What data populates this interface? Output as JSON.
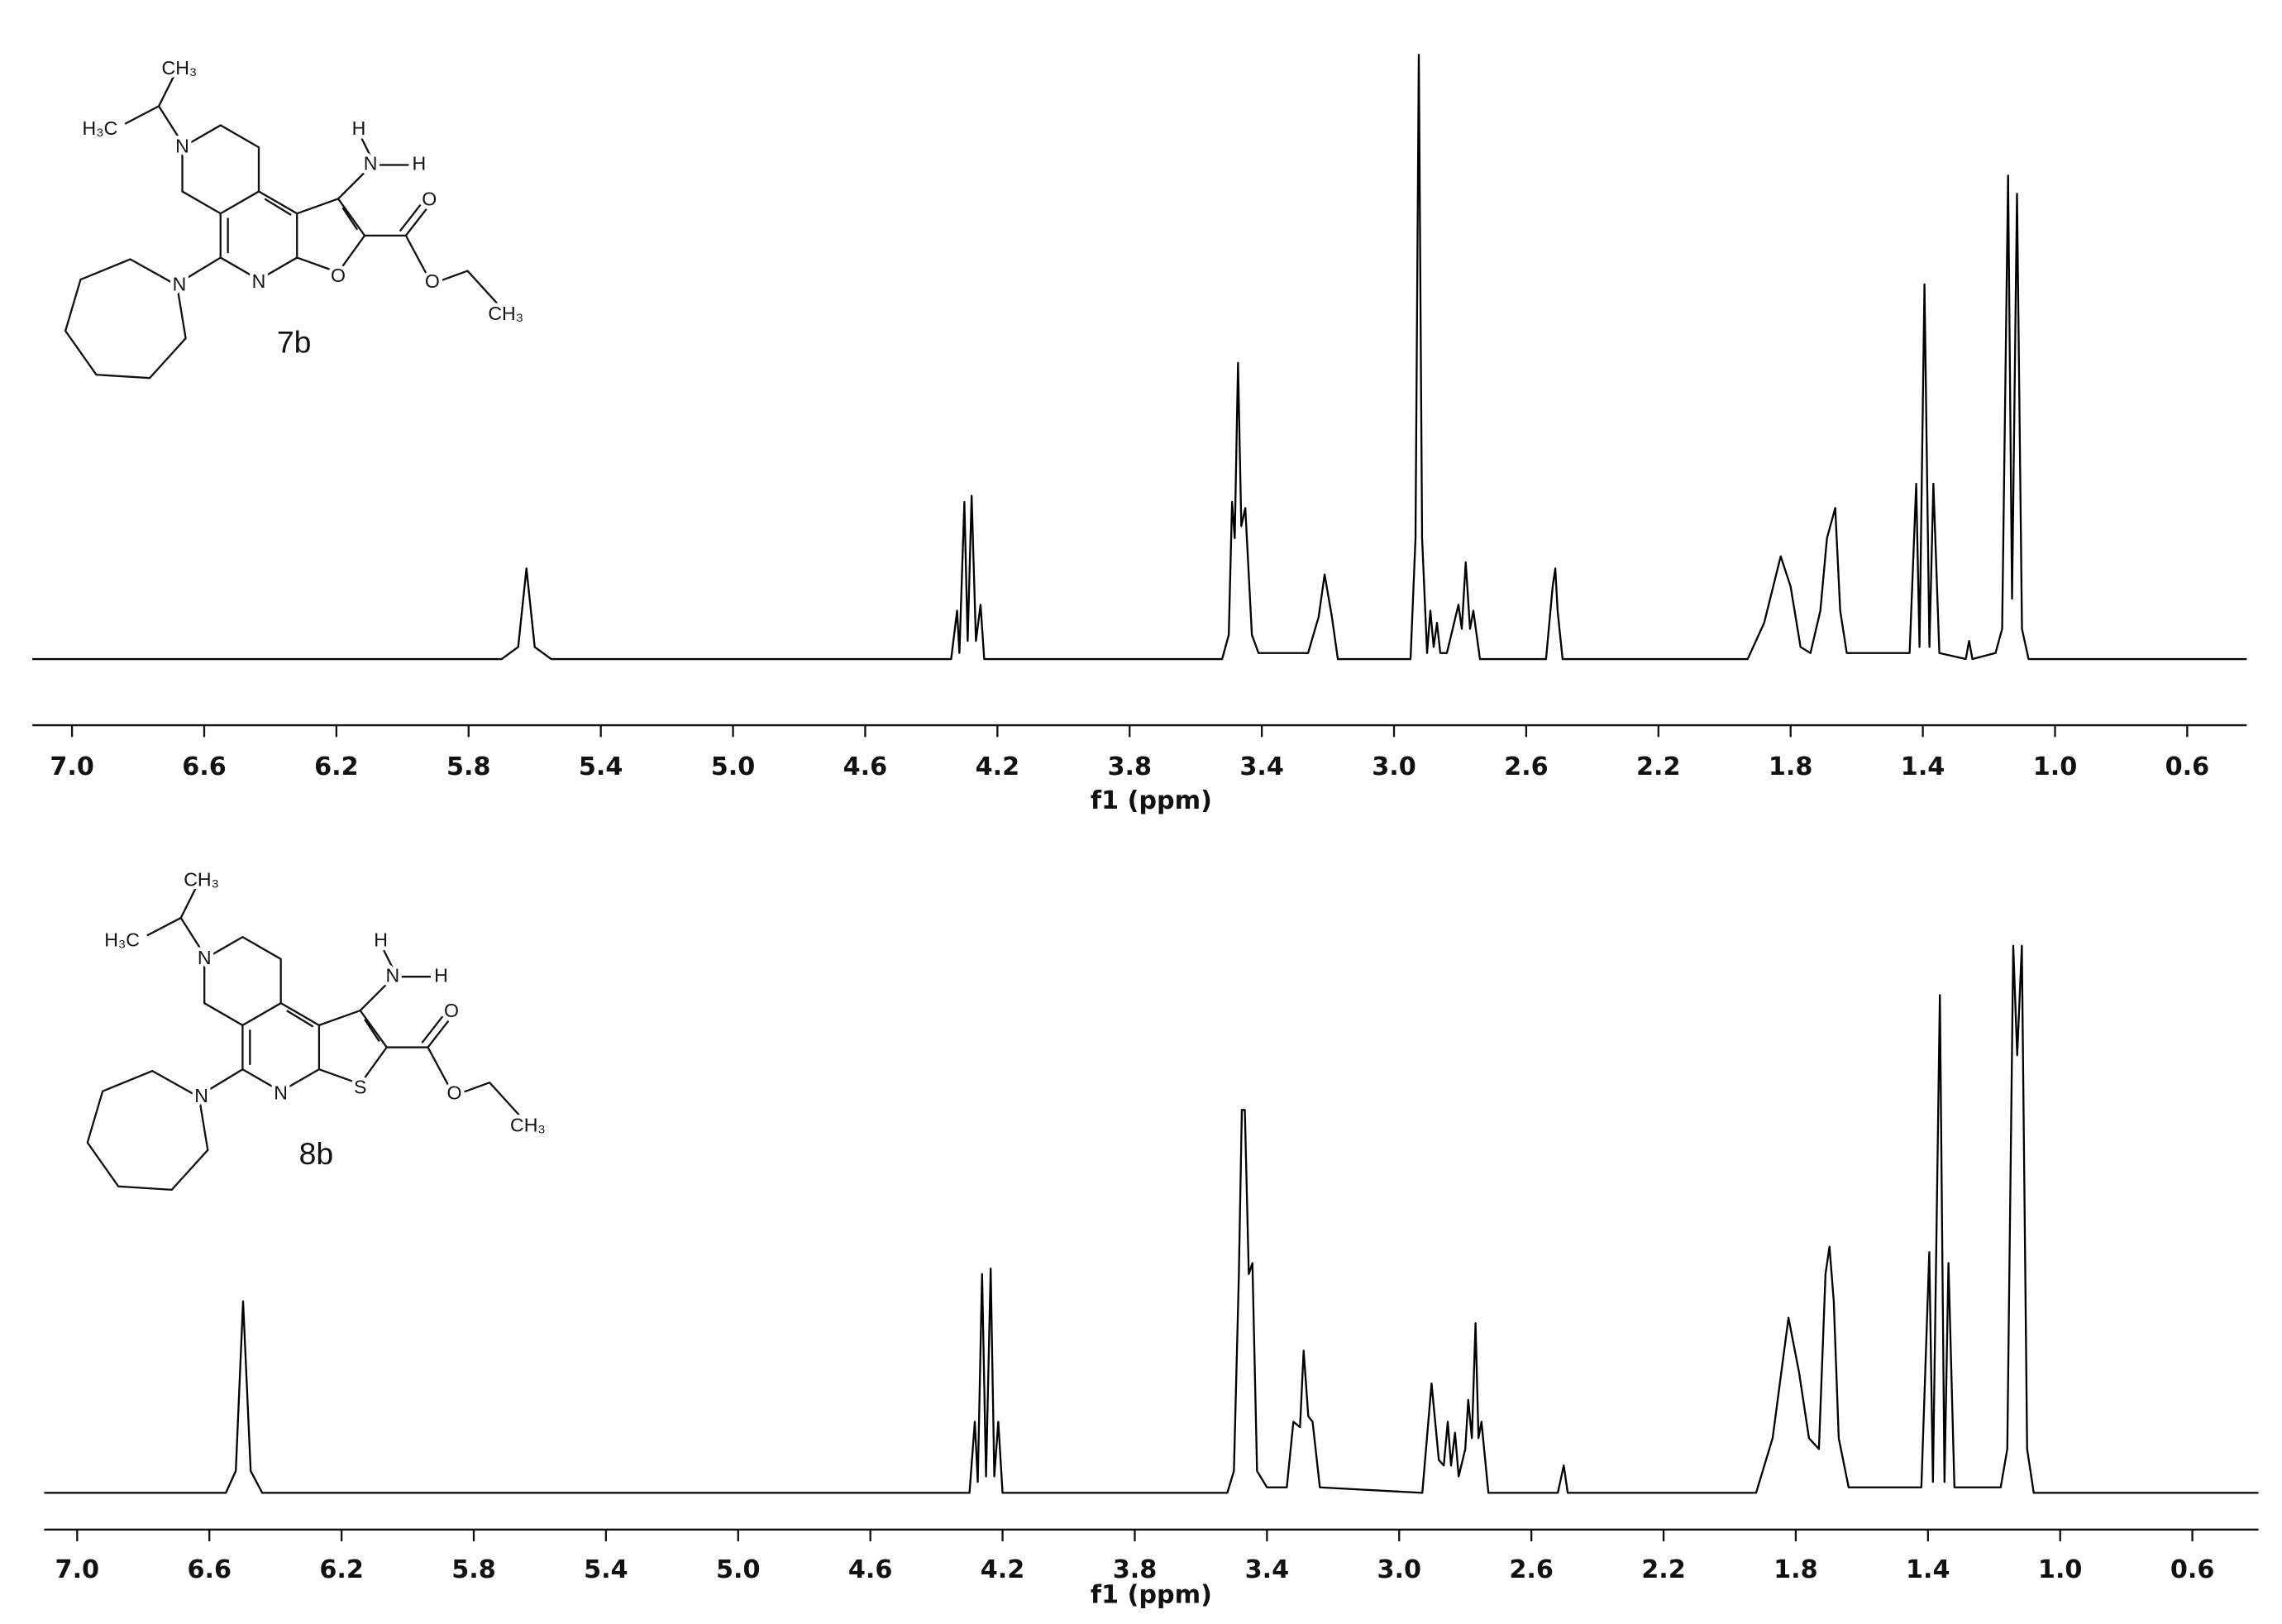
{
  "chart_data": [
    {
      "type": "line",
      "color": "#000000",
      "xlabel": "f1 (ppm)",
      "xlim": [
        7.12,
        0.42
      ],
      "ylim": [
        0,
        100
      ],
      "xticks": [
        {
          "value": 7.0,
          "label": "7.0"
        },
        6.6,
        6.2,
        5.8,
        5.4,
        {
          "value": 5.0,
          "label": "5.0"
        },
        4.6,
        4.2,
        3.8,
        3.4,
        {
          "value": 3.0,
          "label": "3.0"
        },
        2.6,
        2.2,
        1.8,
        1.4,
        {
          "value": 1.0,
          "label": "1.0"
        },
        0.6
      ],
      "structure": {
        "label": "7b",
        "atoms": [
          "CH₃",
          "H₃C",
          "N",
          "H",
          "N",
          "H",
          "O",
          "O",
          "N",
          "N",
          "O",
          "CH₃"
        ]
      },
      "x": [
        7.12,
        5.7,
        5.65,
        5.625,
        5.6,
        5.55,
        4.34,
        4.322,
        4.315,
        4.3,
        4.29,
        4.278,
        4.265,
        4.251,
        4.24,
        3.52,
        3.5,
        3.49,
        3.482,
        3.472,
        3.462,
        3.45,
        3.43,
        3.41,
        3.26,
        3.228,
        3.21,
        3.188,
        3.17,
        2.95,
        2.935,
        2.925,
        2.915,
        2.9,
        2.89,
        2.88,
        2.87,
        2.86,
        2.84,
        2.805,
        2.795,
        2.783,
        2.77,
        2.76,
        2.74,
        2.54,
        2.52,
        2.512,
        2.505,
        2.49,
        1.93,
        1.88,
        1.83,
        1.8,
        1.77,
        1.74,
        1.71,
        1.69,
        1.68,
        1.665,
        1.65,
        1.63,
        1.44,
        1.42,
        1.41,
        1.395,
        1.38,
        1.368,
        1.35,
        1.27,
        1.26,
        1.25,
        1.18,
        1.16,
        1.142,
        1.13,
        1.115,
        1.1,
        1.08,
        0.42
      ],
      "values": [
        0,
        0,
        2,
        15,
        2,
        0,
        0,
        8,
        1,
        26,
        3,
        27,
        3,
        9,
        0,
        0,
        4,
        26,
        20,
        49,
        22,
        25,
        4,
        1,
        1,
        7,
        14,
        7,
        0,
        0,
        20,
        100,
        20,
        1,
        8,
        2,
        6,
        1,
        1,
        9,
        5,
        16,
        5,
        8,
        0,
        0,
        12,
        15,
        8,
        0,
        0,
        6,
        17,
        12,
        2,
        1,
        8,
        20,
        22,
        25,
        8,
        1,
        1,
        29,
        2,
        62,
        2,
        29,
        1,
        0,
        3,
        0,
        1,
        5,
        80,
        10,
        77,
        5,
        0,
        0
      ]
    },
    {
      "type": "line",
      "color": "#000000",
      "xlabel": "f1 (ppm)",
      "xlim": [
        7.1,
        0.4
      ],
      "ylim": [
        0,
        100
      ],
      "xticks": [
        {
          "value": 7.0,
          "label": "7.0"
        },
        6.6,
        6.2,
        5.8,
        5.4,
        {
          "value": 5.0,
          "label": "5.0"
        },
        4.6,
        4.2,
        3.8,
        3.4,
        {
          "value": 3.0,
          "label": "3.0"
        },
        2.6,
        2.2,
        1.8,
        1.4,
        {
          "value": 1.0,
          "label": "1.0"
        },
        0.6
      ],
      "structure": {
        "label": "8b",
        "atoms": [
          "CH₃",
          "H₃C",
          "N",
          "H",
          "N",
          "H",
          "O",
          "S",
          "N",
          "N",
          "O",
          "CH₃"
        ]
      },
      "x": [
        7.1,
        6.55,
        6.52,
        6.498,
        6.475,
        6.44,
        4.3,
        4.284,
        4.275,
        4.262,
        4.25,
        4.236,
        4.225,
        4.213,
        4.2,
        3.52,
        3.5,
        3.485,
        3.476,
        3.467,
        3.455,
        3.444,
        3.43,
        3.4,
        3.34,
        3.32,
        3.3,
        3.289,
        3.275,
        3.262,
        3.24,
        2.93,
        2.902,
        2.88,
        2.865,
        2.853,
        2.843,
        2.831,
        2.82,
        2.8,
        2.791,
        2.78,
        2.769,
        2.76,
        2.751,
        2.73,
        2.52,
        2.502,
        2.49,
        1.92,
        1.87,
        1.822,
        1.79,
        1.76,
        1.73,
        1.71,
        1.698,
        1.685,
        1.67,
        1.64,
        1.42,
        1.396,
        1.385,
        1.364,
        1.35,
        1.338,
        1.32,
        1.18,
        1.16,
        1.142,
        1.13,
        1.116,
        1.1,
        1.08,
        0.4
      ],
      "values": [
        0,
        0,
        4,
        35,
        4,
        0,
        0,
        13,
        2,
        40,
        3,
        41,
        3,
        13,
        0,
        0,
        4,
        40,
        70,
        70,
        40,
        42,
        4,
        1,
        1,
        13,
        12,
        26,
        14,
        13,
        1,
        0,
        20,
        6,
        5,
        13,
        5,
        11,
        3,
        8,
        17,
        10,
        31,
        10,
        13,
        0,
        0,
        5,
        0,
        0,
        10,
        32,
        22,
        10,
        8,
        40,
        45,
        35,
        10,
        1,
        1,
        44,
        2,
        91,
        2,
        42,
        1,
        1,
        8,
        100,
        80,
        100,
        8,
        0,
        0
      ]
    }
  ]
}
